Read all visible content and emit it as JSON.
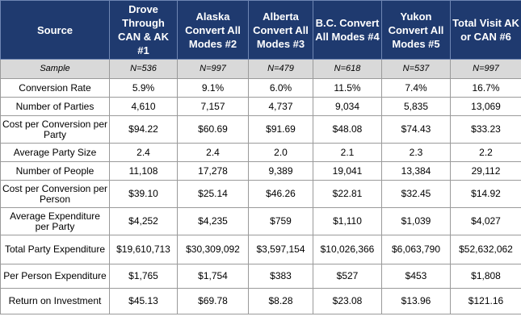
{
  "table": {
    "source_header": "Source",
    "columns": [
      "Drove Through CAN & AK #1",
      "Alaska Convert All Modes #2",
      "Alberta Convert All Modes #3",
      "B.C. Convert All Modes #4",
      "Yukon Convert All Modes #5",
      "Total Visit AK or CAN #6"
    ],
    "sample": {
      "label": "Sample",
      "values": [
        "N=536",
        "N=997",
        "N=479",
        "N=618",
        "N=537",
        "N=997"
      ]
    },
    "rows": [
      {
        "label": "Conversion Rate",
        "values": [
          "5.9%",
          "9.1%",
          "6.0%",
          "11.5%",
          "7.4%",
          "16.7%"
        ]
      },
      {
        "label": "Number of Parties",
        "values": [
          "4,610",
          "7,157",
          "4,737",
          "9,034",
          "5,835",
          "13,069"
        ]
      },
      {
        "label": "Cost per Conversion per Party",
        "values": [
          "$94.22",
          "$60.69",
          "$91.69",
          "$48.08",
          "$74.43",
          "$33.23"
        ]
      },
      {
        "label": "Average Party Size",
        "values": [
          "2.4",
          "2.4",
          "2.0",
          "2.1",
          "2.3",
          "2.2"
        ]
      },
      {
        "label": "Number of People",
        "values": [
          "11,108",
          "17,278",
          "9,389",
          "19,041",
          "13,384",
          "29,112"
        ]
      },
      {
        "label": "Cost per Conversion per Person",
        "values": [
          "$39.10",
          "$25.14",
          "$46.26",
          "$22.81",
          "$32.45",
          "$14.92"
        ]
      },
      {
        "label": "Average Expenditure per Party",
        "values": [
          "$4,252",
          "$4,235",
          "$759",
          "$1,110",
          "$1,039",
          "$4,027"
        ]
      },
      {
        "label": "Total Party Expenditure",
        "values": [
          "$19,610,713",
          "$30,309,092",
          "$3,597,154",
          "$10,026,366",
          "$6,063,790",
          "$52,632,062"
        ]
      },
      {
        "label": "Per Person Expenditure",
        "values": [
          "$1,765",
          "$1,754",
          "$383",
          "$527",
          "$453",
          "$1,808"
        ]
      },
      {
        "label": "Return on Investment",
        "values": [
          "$45.13",
          "$69.78",
          "$8.28",
          "$23.08",
          "$13.96",
          "$121.16"
        ]
      }
    ]
  }
}
